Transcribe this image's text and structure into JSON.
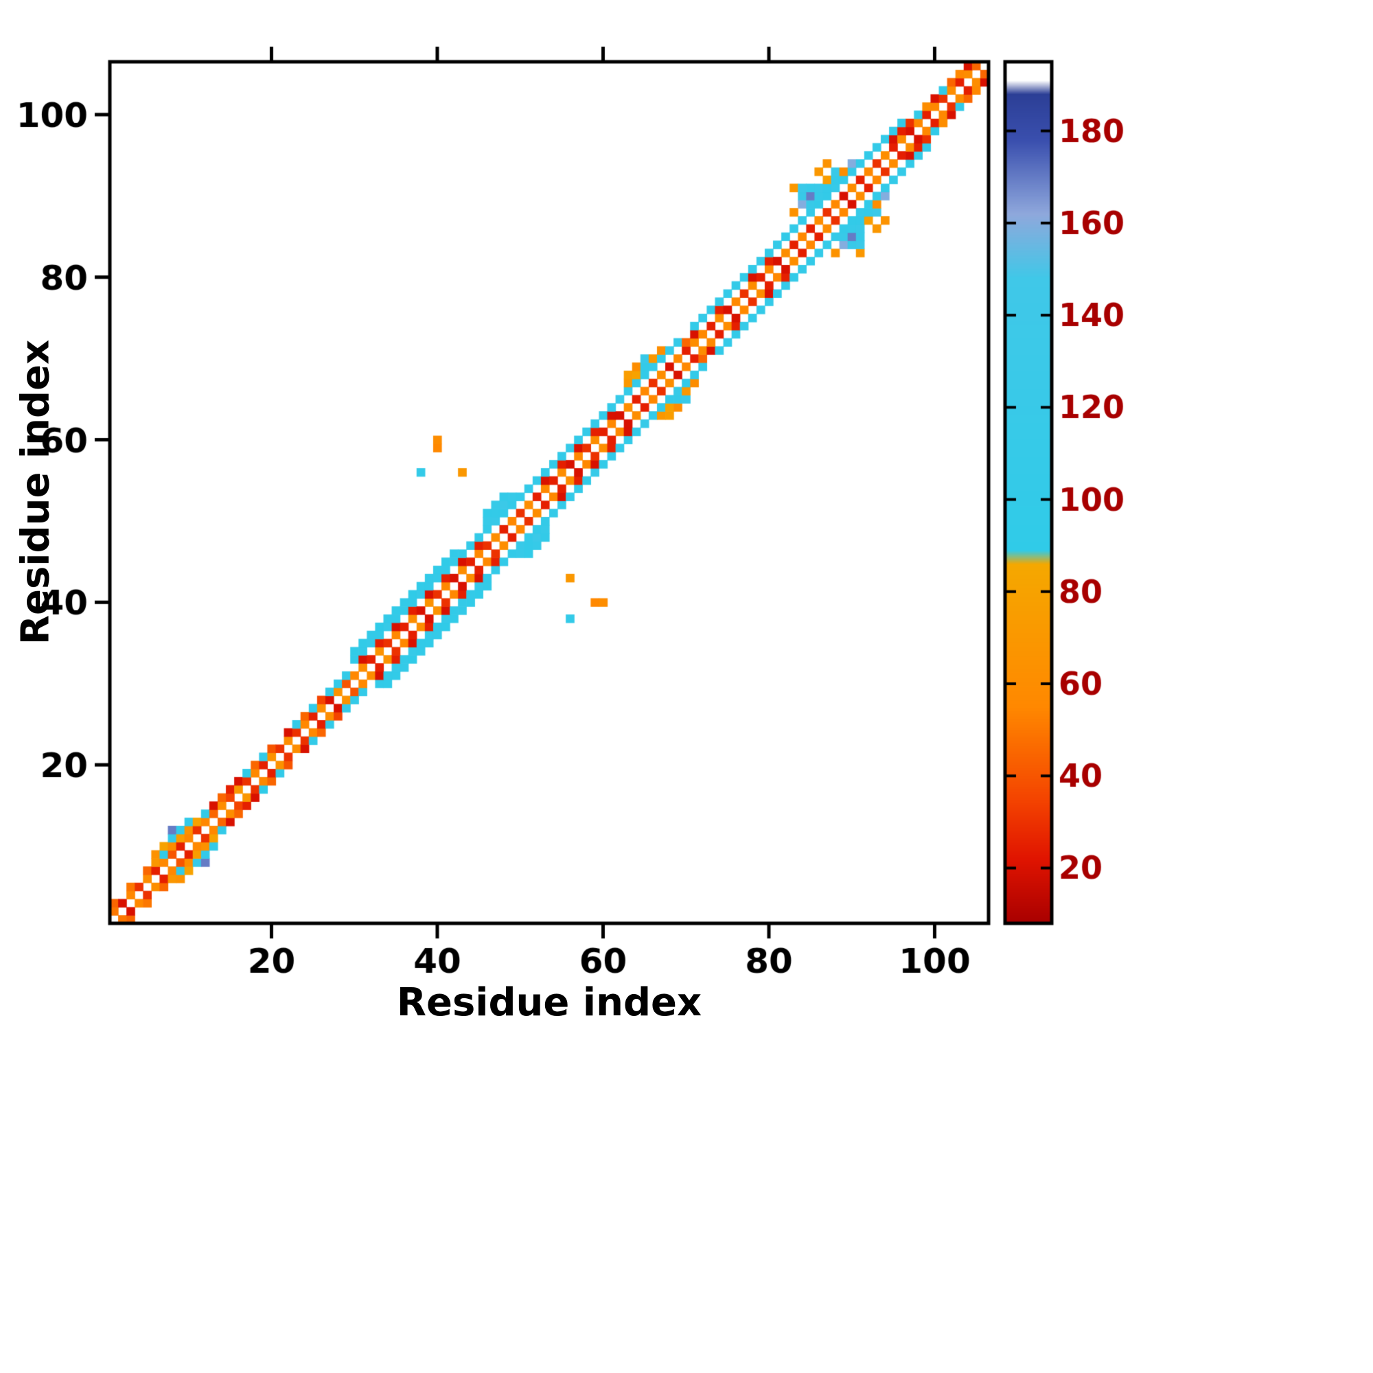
{
  "chart_data": {
    "type": "heatmap",
    "title": "",
    "xlabel": "Residue index",
    "ylabel": "Residue index",
    "x_range": [
      1,
      106
    ],
    "y_range": [
      1,
      106
    ],
    "x_ticks": [
      20,
      40,
      60,
      80,
      100
    ],
    "y_ticks": [
      20,
      40,
      60,
      80,
      100
    ],
    "grid": false,
    "background_value_color": "#ffffff",
    "symmetric": true,
    "colorbar": {
      "position": "right",
      "value_range": [
        8,
        195
      ],
      "ticks": [
        20,
        40,
        60,
        80,
        100,
        120,
        140,
        160,
        180
      ],
      "stops": [
        {
          "v": 8,
          "c": "#a80000"
        },
        {
          "v": 22,
          "c": "#e01400"
        },
        {
          "v": 35,
          "c": "#f44400"
        },
        {
          "v": 55,
          "c": "#ff8800"
        },
        {
          "v": 86,
          "c": "#f5a800"
        },
        {
          "v": 89,
          "c": "#30cbe8"
        },
        {
          "v": 148,
          "c": "#40c8e8"
        },
        {
          "v": 162,
          "c": "#8fa8dc"
        },
        {
          "v": 178,
          "c": "#3a4fae"
        },
        {
          "v": 188,
          "c": "#2c3f96"
        },
        {
          "v": 191,
          "c": "#ffffff"
        }
      ]
    },
    "cells": [
      [
        1,
        2,
        50
      ],
      [
        1,
        3,
        45
      ],
      [
        2,
        3,
        20
      ],
      [
        3,
        4,
        55
      ],
      [
        3,
        5,
        50
      ],
      [
        4,
        5,
        30
      ],
      [
        5,
        6,
        60
      ],
      [
        5,
        7,
        45
      ],
      [
        6,
        7,
        25
      ],
      [
        6,
        8,
        70
      ],
      [
        6,
        9,
        65
      ],
      [
        7,
        8,
        55
      ],
      [
        7,
        9,
        100
      ],
      [
        7,
        10,
        80
      ],
      [
        8,
        9,
        40
      ],
      [
        8,
        10,
        60
      ],
      [
        8,
        11,
        110
      ],
      [
        8,
        12,
        170
      ],
      [
        9,
        10,
        25
      ],
      [
        9,
        11,
        75
      ],
      [
        9,
        12,
        100
      ],
      [
        10,
        11,
        55
      ],
      [
        10,
        12,
        65
      ],
      [
        10,
        13,
        100
      ],
      [
        11,
        12,
        30
      ],
      [
        11,
        13,
        80
      ],
      [
        12,
        13,
        55
      ],
      [
        12,
        14,
        100
      ],
      [
        13,
        14,
        45
      ],
      [
        13,
        15,
        20
      ],
      [
        14,
        15,
        60
      ],
      [
        14,
        16,
        45
      ],
      [
        15,
        16,
        35
      ],
      [
        15,
        17,
        25
      ],
      [
        16,
        17,
        70
      ],
      [
        16,
        18,
        20
      ],
      [
        17,
        18,
        30
      ],
      [
        17,
        19,
        90
      ],
      [
        18,
        19,
        55
      ],
      [
        18,
        20,
        45
      ],
      [
        19,
        20,
        25
      ],
      [
        19,
        21,
        100
      ],
      [
        20,
        21,
        65
      ],
      [
        20,
        22,
        40
      ],
      [
        21,
        22,
        30
      ],
      [
        22,
        23,
        60
      ],
      [
        22,
        24,
        20
      ],
      [
        23,
        24,
        30
      ],
      [
        23,
        25,
        100
      ],
      [
        24,
        25,
        55
      ],
      [
        24,
        26,
        45
      ],
      [
        25,
        26,
        25
      ],
      [
        25,
        27,
        100
      ],
      [
        26,
        27,
        60
      ],
      [
        26,
        28,
        35
      ],
      [
        27,
        28,
        20
      ],
      [
        27,
        29,
        105
      ],
      [
        28,
        29,
        65
      ],
      [
        28,
        30,
        100
      ],
      [
        29,
        30,
        40
      ],
      [
        29,
        31,
        100
      ],
      [
        30,
        31,
        55
      ],
      [
        30,
        33,
        100
      ],
      [
        30,
        34,
        95
      ],
      [
        31,
        32,
        60
      ],
      [
        31,
        33,
        20
      ],
      [
        31,
        34,
        105
      ],
      [
        31,
        35,
        95
      ],
      [
        32,
        33,
        25
      ],
      [
        32,
        35,
        110
      ],
      [
        32,
        36,
        100
      ],
      [
        33,
        34,
        65
      ],
      [
        33,
        35,
        25
      ],
      [
        33,
        36,
        100
      ],
      [
        33,
        37,
        90
      ],
      [
        34,
        35,
        30
      ],
      [
        34,
        37,
        115
      ],
      [
        34,
        38,
        100
      ],
      [
        35,
        36,
        55
      ],
      [
        35,
        37,
        20
      ],
      [
        35,
        38,
        100
      ],
      [
        35,
        39,
        95
      ],
      [
        36,
        37,
        25
      ],
      [
        36,
        39,
        105
      ],
      [
        36,
        40,
        100
      ],
      [
        37,
        38,
        60
      ],
      [
        37,
        39,
        25
      ],
      [
        37,
        40,
        100
      ],
      [
        37,
        41,
        90
      ],
      [
        38,
        39,
        20
      ],
      [
        38,
        41,
        110
      ],
      [
        38,
        42,
        95
      ],
      [
        39,
        40,
        65
      ],
      [
        39,
        41,
        20
      ],
      [
        39,
        42,
        100
      ],
      [
        39,
        43,
        100
      ],
      [
        40,
        41,
        30
      ],
      [
        40,
        43,
        105
      ],
      [
        40,
        44,
        95
      ],
      [
        41,
        42,
        55
      ],
      [
        41,
        43,
        25
      ],
      [
        41,
        44,
        100
      ],
      [
        41,
        45,
        90
      ],
      [
        42,
        43,
        20
      ],
      [
        42,
        45,
        110
      ],
      [
        42,
        46,
        100
      ],
      [
        43,
        44,
        60
      ],
      [
        43,
        45,
        20
      ],
      [
        43,
        46,
        100
      ],
      [
        44,
        45,
        25
      ],
      [
        44,
        47,
        105
      ],
      [
        45,
        46,
        55
      ],
      [
        45,
        47,
        25
      ],
      [
        45,
        48,
        100
      ],
      [
        46,
        47,
        30
      ],
      [
        46,
        49,
        100
      ],
      [
        46,
        50,
        110
      ],
      [
        46,
        51,
        95
      ],
      [
        47,
        48,
        60
      ],
      [
        47,
        50,
        120
      ],
      [
        47,
        51,
        100
      ],
      [
        47,
        52,
        110
      ],
      [
        48,
        49,
        25
      ],
      [
        48,
        51,
        100
      ],
      [
        48,
        52,
        130
      ],
      [
        48,
        53,
        100
      ],
      [
        49,
        50,
        55
      ],
      [
        49,
        52,
        100
      ],
      [
        49,
        53,
        110
      ],
      [
        50,
        51,
        30
      ],
      [
        50,
        53,
        100
      ],
      [
        51,
        52,
        60
      ],
      [
        51,
        54,
        100
      ],
      [
        52,
        53,
        25
      ],
      [
        52,
        55,
        100
      ],
      [
        53,
        54,
        55
      ],
      [
        38,
        56,
        100
      ],
      [
        40,
        59,
        55
      ],
      [
        40,
        60,
        60
      ],
      [
        43,
        56,
        70
      ],
      [
        53,
        55,
        20
      ],
      [
        53,
        56,
        100
      ],
      [
        54,
        55,
        25
      ],
      [
        54,
        57,
        105
      ],
      [
        55,
        56,
        60
      ],
      [
        55,
        57,
        25
      ],
      [
        55,
        58,
        100
      ],
      [
        56,
        57,
        20
      ],
      [
        56,
        59,
        110
      ],
      [
        57,
        58,
        55
      ],
      [
        57,
        59,
        20
      ],
      [
        57,
        60,
        100
      ],
      [
        58,
        59,
        30
      ],
      [
        58,
        61,
        100
      ],
      [
        59,
        60,
        60
      ],
      [
        59,
        61,
        25
      ],
      [
        59,
        62,
        105
      ],
      [
        60,
        61,
        25
      ],
      [
        60,
        63,
        100
      ],
      [
        61,
        62,
        55
      ],
      [
        61,
        63,
        20
      ],
      [
        61,
        64,
        100
      ],
      [
        62,
        63,
        20
      ],
      [
        62,
        65,
        110
      ],
      [
        63,
        64,
        60
      ],
      [
        63,
        66,
        100
      ],
      [
        63,
        67,
        70
      ],
      [
        63,
        68,
        75
      ],
      [
        64,
        65,
        25
      ],
      [
        64,
        67,
        105
      ],
      [
        64,
        68,
        80
      ],
      [
        64,
        69,
        60
      ],
      [
        65,
        66,
        55
      ],
      [
        65,
        68,
        100
      ],
      [
        65,
        69,
        100
      ],
      [
        65,
        70,
        120
      ],
      [
        66,
        67,
        30
      ],
      [
        66,
        69,
        110
      ],
      [
        66,
        70,
        70
      ],
      [
        67,
        68,
        60
      ],
      [
        67,
        70,
        100
      ],
      [
        67,
        71,
        60
      ],
      [
        68,
        69,
        20
      ],
      [
        68,
        71,
        105
      ],
      [
        69,
        70,
        55
      ],
      [
        69,
        72,
        100
      ],
      [
        70,
        71,
        25
      ],
      [
        70,
        72,
        45
      ],
      [
        71,
        72,
        60
      ],
      [
        71,
        73,
        20
      ],
      [
        71,
        74,
        100
      ],
      [
        72,
        73,
        55
      ],
      [
        72,
        75,
        105
      ],
      [
        73,
        74,
        25
      ],
      [
        73,
        76,
        100
      ],
      [
        74,
        75,
        60
      ],
      [
        74,
        76,
        25
      ],
      [
        74,
        77,
        110
      ],
      [
        75,
        76,
        20
      ],
      [
        75,
        78,
        100
      ],
      [
        76,
        77,
        55
      ],
      [
        76,
        79,
        105
      ],
      [
        77,
        78,
        30
      ],
      [
        77,
        80,
        100
      ],
      [
        78,
        79,
        60
      ],
      [
        78,
        80,
        20
      ],
      [
        78,
        81,
        100
      ],
      [
        79,
        80,
        25
      ],
      [
        79,
        82,
        110
      ],
      [
        80,
        81,
        55
      ],
      [
        80,
        82,
        25
      ],
      [
        80,
        83,
        100
      ],
      [
        81,
        82,
        20
      ],
      [
        81,
        84,
        105
      ],
      [
        82,
        83,
        60
      ],
      [
        82,
        85,
        100
      ],
      [
        83,
        84,
        25
      ],
      [
        83,
        86,
        100
      ],
      [
        83,
        88,
        65
      ],
      [
        83,
        91,
        70
      ],
      [
        84,
        85,
        55
      ],
      [
        84,
        87,
        110
      ],
      [
        84,
        89,
        160
      ],
      [
        84,
        90,
        120
      ],
      [
        84,
        91,
        130
      ],
      [
        85,
        86,
        25
      ],
      [
        85,
        88,
        100
      ],
      [
        85,
        89,
        120
      ],
      [
        85,
        90,
        170
      ],
      [
        85,
        91,
        110
      ],
      [
        86,
        87,
        60
      ],
      [
        86,
        89,
        105
      ],
      [
        86,
        90,
        110
      ],
      [
        86,
        91,
        120
      ],
      [
        86,
        93,
        70
      ],
      [
        87,
        88,
        30
      ],
      [
        87,
        90,
        100
      ],
      [
        87,
        91,
        100
      ],
      [
        87,
        92,
        75
      ],
      [
        87,
        94,
        65
      ],
      [
        88,
        89,
        55
      ],
      [
        88,
        91,
        110
      ],
      [
        88,
        92,
        100
      ],
      [
        88,
        93,
        120
      ],
      [
        89,
        90,
        20
      ],
      [
        89,
        92,
        100
      ],
      [
        89,
        93,
        60
      ],
      [
        90,
        91,
        60
      ],
      [
        90,
        93,
        105
      ],
      [
        90,
        94,
        160
      ],
      [
        91,
        92,
        25
      ],
      [
        91,
        94,
        100
      ],
      [
        92,
        93,
        55
      ],
      [
        92,
        95,
        100
      ],
      [
        93,
        94,
        30
      ],
      [
        93,
        96,
        105
      ],
      [
        94,
        95,
        60
      ],
      [
        94,
        97,
        100
      ],
      [
        95,
        96,
        25
      ],
      [
        95,
        97,
        20
      ],
      [
        95,
        98,
        105
      ],
      [
        96,
        97,
        60
      ],
      [
        96,
        98,
        25
      ],
      [
        96,
        99,
        100
      ],
      [
        97,
        98,
        20
      ],
      [
        97,
        99,
        30
      ],
      [
        98,
        99,
        55
      ],
      [
        98,
        100,
        100
      ],
      [
        99,
        100,
        25
      ],
      [
        99,
        101,
        60
      ],
      [
        100,
        101,
        55
      ],
      [
        100,
        102,
        20
      ],
      [
        101,
        102,
        30
      ],
      [
        101,
        103,
        100
      ],
      [
        102,
        103,
        60
      ],
      [
        102,
        104,
        45
      ],
      [
        103,
        104,
        25
      ],
      [
        103,
        105,
        55
      ],
      [
        104,
        105,
        60
      ],
      [
        104,
        106,
        20
      ],
      [
        105,
        106,
        45
      ]
    ]
  }
}
